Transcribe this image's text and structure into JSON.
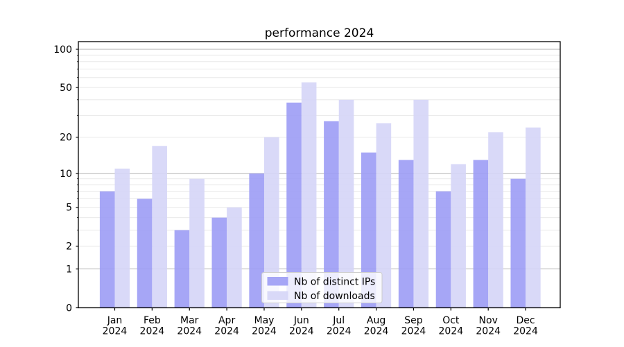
{
  "chart_data": {
    "type": "bar",
    "title": "performance 2024",
    "categories": [
      "Jan 2024",
      "Feb 2024",
      "Mar 2024",
      "Apr 2024",
      "May 2024",
      "Jun 2024",
      "Jul 2024",
      "Aug 2024",
      "Sep 2024",
      "Oct 2024",
      "Nov 2024",
      "Dec 2024"
    ],
    "series": [
      {
        "name": "Nb of distinct IPs",
        "color": "#9c9cf5",
        "values": [
          7,
          6,
          3,
          4,
          10,
          38,
          27,
          15,
          13,
          7,
          13,
          9
        ]
      },
      {
        "name": "Nb of downloads",
        "color": "#d5d5f7",
        "values": [
          11,
          17,
          9,
          5,
          20,
          55,
          40,
          26,
          40,
          12,
          22,
          24
        ]
      }
    ],
    "bar_alpha": 0.9,
    "yscale": "log1p",
    "ylim": [
      0,
      116
    ],
    "y_ticks_labeled": [
      0,
      1,
      2,
      5,
      10,
      20,
      50,
      100
    ],
    "y_grid_major": [
      1,
      10,
      100
    ],
    "y_grid_minor": [
      2,
      3,
      4,
      5,
      6,
      7,
      8,
      9,
      20,
      30,
      40,
      50,
      60,
      70,
      80,
      90
    ],
    "grid": true,
    "legend": {
      "position": "lower center",
      "labels": [
        "Nb of distinct IPs",
        "Nb of downloads"
      ]
    },
    "colors": {
      "axis": "#000000",
      "grid_major": "#b0b0b0",
      "grid_minor": "#e8e8e8",
      "background": "#ffffff"
    }
  }
}
